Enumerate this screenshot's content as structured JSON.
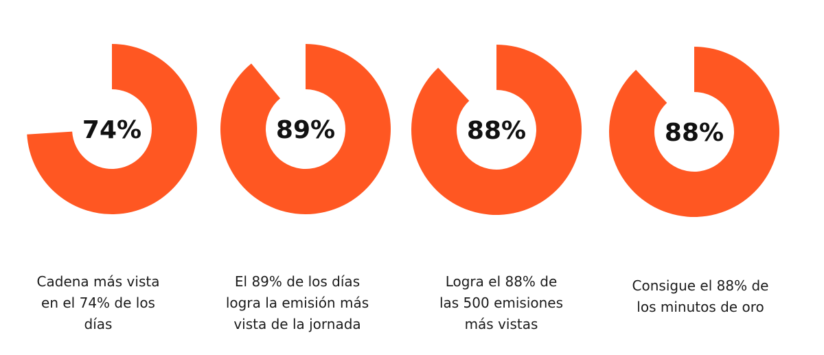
{
  "chart_data": [
    {
      "type": "donut",
      "values": [
        74
      ],
      "value_labels": [
        "74%"
      ],
      "color": "#ff5722",
      "caption": [
        "Cadena más vista",
        "en el 74% de los",
        "días"
      ]
    },
    {
      "type": "donut",
      "values": [
        89
      ],
      "value_labels": [
        "89%"
      ],
      "color": "#ff5722",
      "caption": [
        "El 89% de los días",
        "logra la emisión más",
        "vista de la jornada"
      ]
    },
    {
      "type": "donut",
      "values": [
        88
      ],
      "value_labels": [
        "88%"
      ],
      "color": "#ff5722",
      "caption": [
        "Logra el 88% de",
        "las 500 emisiones",
        "más vistas"
      ]
    },
    {
      "type": "donut",
      "values": [
        88
      ],
      "value_labels": [
        "88%"
      ],
      "color": "#ff5722",
      "caption": [
        "Consigue el 88% de",
        "los minutos de oro"
      ]
    }
  ]
}
